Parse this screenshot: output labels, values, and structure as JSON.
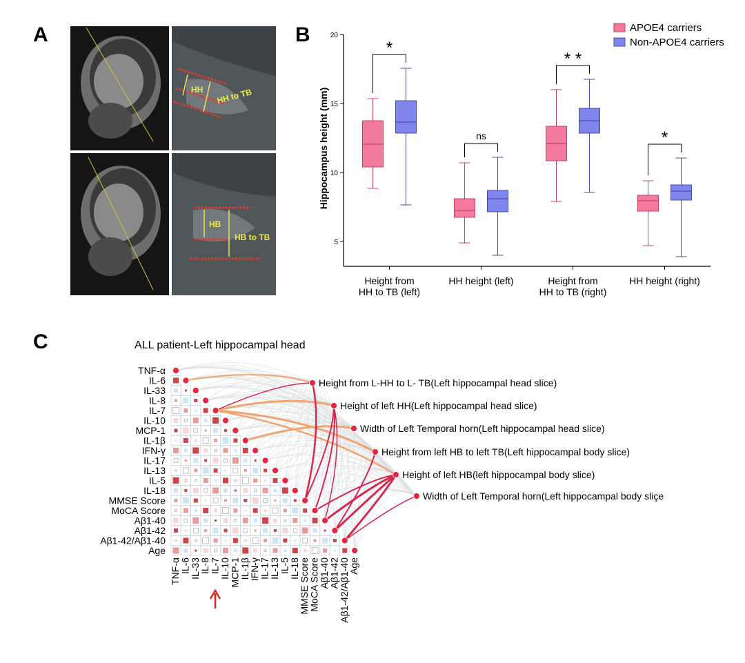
{
  "panels": {
    "a": "A",
    "b": "B",
    "c": "C"
  },
  "image_labels": {
    "hh": "HH",
    "hh_to_tb": "HH to TB",
    "hb": "HB",
    "hb_to_tb": "HB to TB"
  },
  "chart_data": {
    "type": "box",
    "y_label": "Hippocampus height (mm)",
    "categories": [
      "Height from\nHH to TB (left)",
      "HH height (left)",
      "Height from\nHH to TB (right)",
      "HH height (right)"
    ],
    "series": [
      {
        "name": "APOE4 carriers",
        "color": "#f37b9f",
        "stroke": "#c8405e",
        "boxes": [
          {
            "min": 8.85,
            "q1": 10.4,
            "median": 12.05,
            "q3": 13.75,
            "max": 15.35
          },
          {
            "min": 4.9,
            "q1": 6.75,
            "median": 7.25,
            "q3": 8.1,
            "max": 10.7
          },
          {
            "min": 7.9,
            "q1": 10.85,
            "median": 12.1,
            "q3": 13.35,
            "max": 16.0
          },
          {
            "min": 4.7,
            "q1": 7.2,
            "median": 7.95,
            "q3": 8.35,
            "max": 9.4
          }
        ]
      },
      {
        "name": "Non-APOE4 carriers",
        "color": "#7e86ea",
        "stroke": "#474ca8",
        "boxes": [
          {
            "min": 7.65,
            "q1": 12.85,
            "median": 13.65,
            "q3": 15.2,
            "max": 17.55
          },
          {
            "min": 4.0,
            "q1": 7.15,
            "median": 8.1,
            "q3": 8.7,
            "max": 11.1
          },
          {
            "min": 8.55,
            "q1": 12.85,
            "median": 13.75,
            "q3": 14.65,
            "max": 16.75
          },
          {
            "min": 3.9,
            "q1": 8.0,
            "median": 8.65,
            "q3": 9.1,
            "max": 11.05
          }
        ]
      }
    ],
    "significance": [
      "*",
      "ns",
      "* *",
      "*"
    ],
    "ylim": [
      3.2,
      20
    ],
    "yticks": [
      5,
      10,
      15,
      20
    ],
    "legend": "top-right"
  },
  "network": {
    "title": "ALL patient-Left hippocampal head",
    "rows": [
      "TNF-α",
      "IL-6",
      "IL-33",
      "IL-8",
      "IL-7",
      "IL-10",
      "MCP-1",
      "IL-1β",
      "IFN-γ",
      "IL-17",
      "IL-13",
      "IL-5",
      "IL-18",
      "MMSE Score",
      "MoCA Score",
      "Aβ1-40",
      "Aβ1-42",
      "Aβ1-42/Aβ1-40",
      "Age"
    ],
    "columns": [
      "TNF-α",
      "IL-6",
      "IL-33",
      "IL-8",
      "IL-7",
      "IL-10",
      "MCP-1",
      "IL-1β",
      "IFN-γ",
      "IL-17",
      "IL-13",
      "IL-5",
      "IL-18",
      "MMSE Score",
      "MoCA Score",
      "Aβ1-40",
      "Aβ1-42",
      "Aβ1-42/Aβ1-40",
      "Age"
    ],
    "targets": [
      "Height from L-HH to L- TB(Left hippocampal  head slice)",
      "Height of left HH(Left hippocampal  head slice)",
      "Width of Left Temporal horn(Left hippocampal  head slice)",
      "Height from left HB to left TB(Left hippocampal body slice)",
      "Height of left HB(left hippocampal body slice)",
      "Width of Left Temporal horn(Left hippocampal body sliçe"
    ]
  }
}
